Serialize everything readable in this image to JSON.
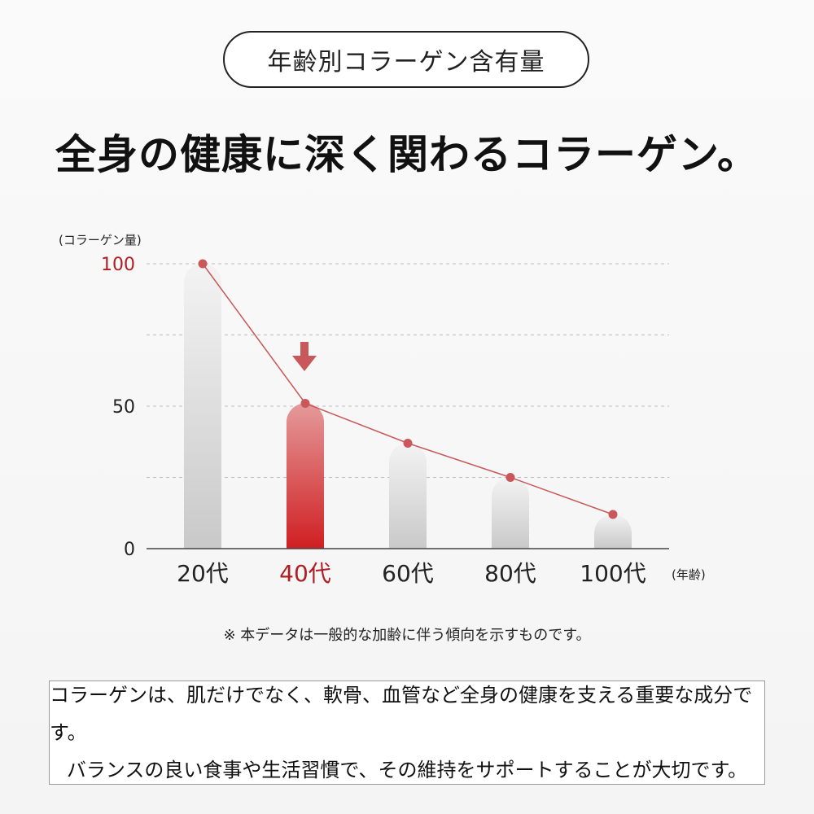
{
  "header": {
    "pill_text": "年齢別コラーゲン含有量",
    "headline": "全身の健康に深く関わるコラーゲン。"
  },
  "chart_data": {
    "type": "bar",
    "categories": [
      "20代",
      "40代",
      "60代",
      "80代",
      "100代"
    ],
    "values": [
      100,
      51,
      37,
      25,
      12
    ],
    "highlight_category": "40代",
    "ylabel": "(コラーゲン量)",
    "xlabel": "(年齢)",
    "yticks": [
      "100",
      "50",
      "0"
    ],
    "ylim": [
      0,
      100
    ],
    "grid": true,
    "overlay_line": true,
    "colors": {
      "bar": "#d6d6d6",
      "highlight_bar": "#d02a2a",
      "line": "#c9585a",
      "highlight_text": "#b01e23"
    }
  },
  "note": "※ 本データは一般的な加齢に伴う傾向を示すものです。",
  "info_box": {
    "line1": "コラーゲンは、肌だけでなく、軟骨、血管など全身の健康を支える重要な成分です。",
    "line2": "バランスの良い食事や生活習慣で、その維持をサポートすることが大切です。"
  }
}
